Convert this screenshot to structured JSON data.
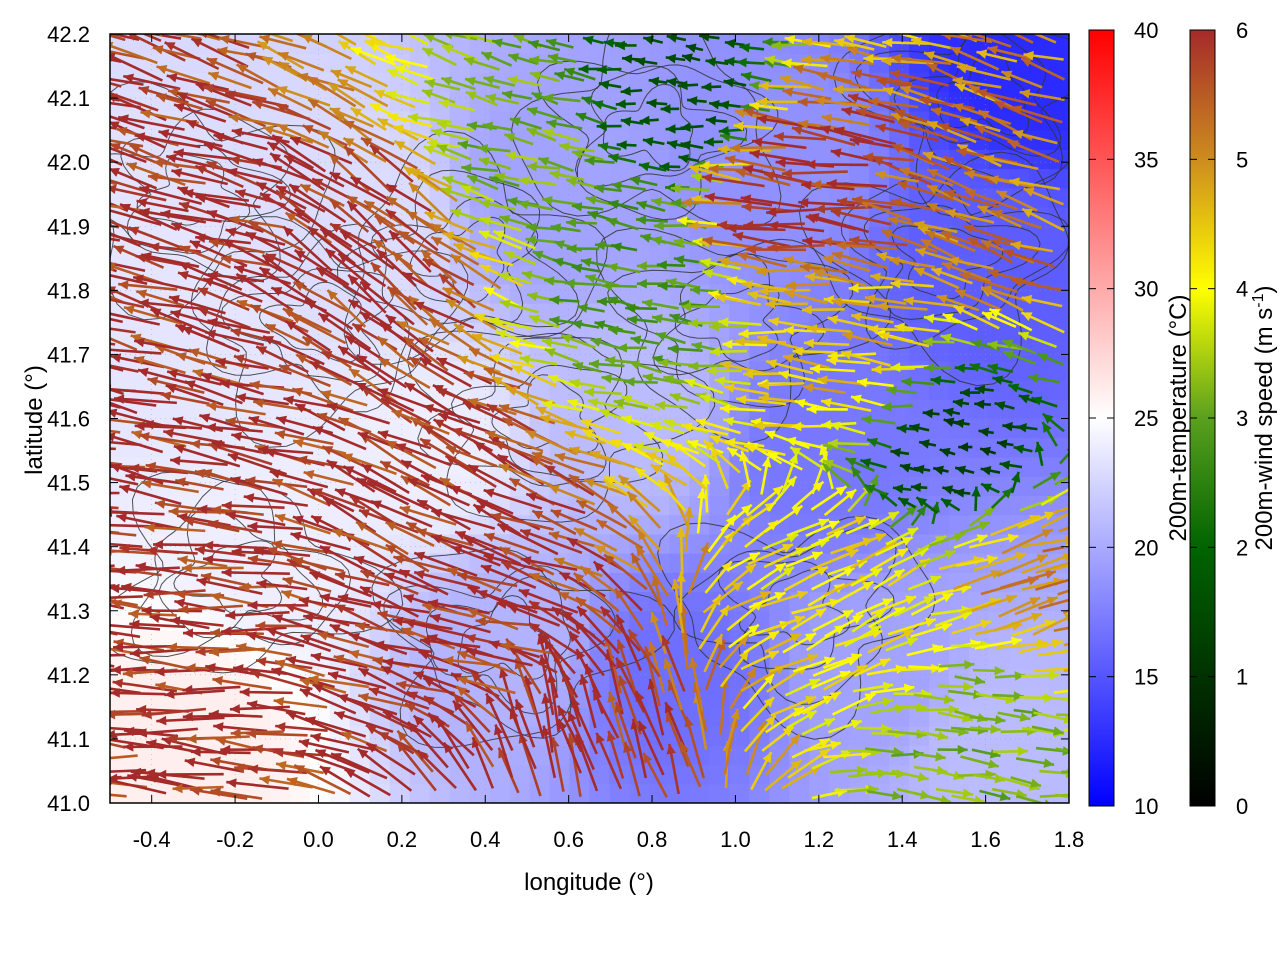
{
  "chart_data": {
    "type": "heatmap",
    "title": "",
    "xlabel": "longitude (°)",
    "ylabel": "latitude (°)",
    "xlim": [
      -0.5,
      1.8
    ],
    "ylim": [
      41.0,
      42.2
    ],
    "x_ticks": [
      "-0.4",
      "-0.2",
      "0.0",
      "0.2",
      "0.4",
      "0.6",
      "0.8",
      "1.0",
      "1.2",
      "1.4",
      "1.6",
      "1.8"
    ],
    "x_tick_values": [
      -0.4,
      -0.2,
      0.0,
      0.2,
      0.4,
      0.6,
      0.8,
      1.0,
      1.2,
      1.4,
      1.6,
      1.8
    ],
    "y_ticks": [
      "41.0",
      "41.1",
      "41.2",
      "41.3",
      "41.4",
      "41.5",
      "41.6",
      "41.7",
      "41.8",
      "41.9",
      "42.0",
      "42.1",
      "42.2"
    ],
    "y_tick_values": [
      41.0,
      41.1,
      41.2,
      41.3,
      41.4,
      41.5,
      41.6,
      41.7,
      41.8,
      41.9,
      42.0,
      42.1,
      42.2
    ],
    "grid": true,
    "overlays": [
      "wind-vectors",
      "terrain-contours"
    ],
    "temperature_colorbar": {
      "label": "200m-temperature (°C)",
      "range": [
        10,
        40
      ],
      "ticks": [
        "10",
        "15",
        "20",
        "25",
        "30",
        "35",
        "40"
      ],
      "tick_values": [
        10,
        15,
        20,
        25,
        30,
        35,
        40
      ],
      "colors": [
        "#0000ff",
        "#ffffff",
        "#ff0000"
      ],
      "color_stops": [
        10,
        25,
        40
      ]
    },
    "wind_colorbar": {
      "label": "200m-wind speed (m s",
      "label_sup": "-1",
      "label_end": ")",
      "range": [
        0,
        6
      ],
      "ticks": [
        "0",
        "1",
        "2",
        "3",
        "4",
        "5",
        "6"
      ],
      "tick_values": [
        0,
        1,
        2,
        3,
        4,
        5,
        6
      ],
      "colors": [
        "#000000",
        "#006400",
        "#5aa01e",
        "#ffff00",
        "#cd8c1e",
        "#a52a2a"
      ],
      "color_stops": [
        0,
        2,
        3,
        4,
        5,
        6
      ]
    },
    "temperature_regions": [
      {
        "lon": -0.35,
        "lat": 41.75,
        "temp": 23.5
      },
      {
        "lon": -0.1,
        "lat": 41.4,
        "temp": 24.0
      },
      {
        "lon": -0.3,
        "lat": 41.1,
        "temp": 26.0
      },
      {
        "lon": 0.1,
        "lat": 41.9,
        "temp": 23.0
      },
      {
        "lon": 0.25,
        "lat": 41.55,
        "temp": 24.0
      },
      {
        "lon": 0.45,
        "lat": 41.25,
        "temp": 20.5
      },
      {
        "lon": 0.55,
        "lat": 41.95,
        "temp": 19.5
      },
      {
        "lon": 0.75,
        "lat": 41.6,
        "temp": 21.0
      },
      {
        "lon": 0.85,
        "lat": 41.2,
        "temp": 16.5
      },
      {
        "lon": 1.1,
        "lat": 42.0,
        "temp": 18.5
      },
      {
        "lon": 1.2,
        "lat": 41.55,
        "temp": 17.0
      },
      {
        "lon": 1.35,
        "lat": 41.2,
        "temp": 19.5
      },
      {
        "lon": 1.6,
        "lat": 41.85,
        "temp": 15.5
      },
      {
        "lon": 1.7,
        "lat": 42.15,
        "temp": 12.5
      },
      {
        "lon": 1.6,
        "lat": 41.1,
        "temp": 21.0
      }
    ],
    "wind_regions": [
      {
        "lon": -0.3,
        "lat": 41.9,
        "u": -3.8,
        "v": 1.0,
        "speed": 6.0
      },
      {
        "lon": -0.2,
        "lat": 41.5,
        "u": -4.2,
        "v": 0.8,
        "speed": 6.0
      },
      {
        "lon": -0.3,
        "lat": 41.25,
        "u": -4.8,
        "v": 0.2,
        "speed": 6.0
      },
      {
        "lon": 0.2,
        "lat": 41.85,
        "u": -2.2,
        "v": 1.7,
        "speed": 6.0
      },
      {
        "lon": 0.3,
        "lat": 41.5,
        "u": -2.8,
        "v": 1.4,
        "speed": 6.0
      },
      {
        "lon": 0.45,
        "lat": 41.25,
        "u": -3.2,
        "v": 0.8,
        "speed": 6.0
      },
      {
        "lon": 0.6,
        "lat": 41.1,
        "u": -0.8,
        "v": 2.6,
        "speed": 6.0
      },
      {
        "lon": 0.5,
        "lat": 42.0,
        "u": -2.0,
        "v": 0.5,
        "speed": 3.2
      },
      {
        "lon": 0.8,
        "lat": 41.8,
        "u": -2.0,
        "v": 0.3,
        "speed": 2.8
      },
      {
        "lon": 0.9,
        "lat": 42.1,
        "u": -1.4,
        "v": 0.1,
        "speed": 1.5
      },
      {
        "lon": 1.2,
        "lat": 41.95,
        "u": -3.8,
        "v": 0.4,
        "speed": 6.0
      },
      {
        "lon": 1.3,
        "lat": 41.7,
        "u": -3.0,
        "v": 0.3,
        "speed": 4.5
      },
      {
        "lon": 1.55,
        "lat": 41.55,
        "u": -0.8,
        "v": 0.1,
        "speed": 1.2
      },
      {
        "lon": 1.2,
        "lat": 41.3,
        "u": 2.0,
        "v": 0.9,
        "speed": 4.2
      },
      {
        "lon": 1.55,
        "lat": 41.1,
        "u": 2.4,
        "v": -0.3,
        "speed": 3.2
      },
      {
        "lon": 1.7,
        "lat": 41.35,
        "u": 3.0,
        "v": 0.9,
        "speed": 5.0
      },
      {
        "lon": 1.65,
        "lat": 41.9,
        "u": -2.8,
        "v": 1.0,
        "speed": 5.2
      }
    ],
    "contour_terrain_peaks": [
      {
        "lon": -0.3,
        "lat": 41.95
      },
      {
        "lon": 0.0,
        "lat": 41.75
      },
      {
        "lon": 0.35,
        "lat": 41.85
      },
      {
        "lon": 0.55,
        "lat": 41.6
      },
      {
        "lon": 0.8,
        "lat": 42.05
      },
      {
        "lon": 1.0,
        "lat": 41.75
      },
      {
        "lon": 1.15,
        "lat": 41.3
      },
      {
        "lon": 1.5,
        "lat": 41.85
      },
      {
        "lon": 1.6,
        "lat": 42.1
      },
      {
        "lon": 0.45,
        "lat": 41.25
      },
      {
        "lon": -0.2,
        "lat": 41.35
      }
    ]
  }
}
